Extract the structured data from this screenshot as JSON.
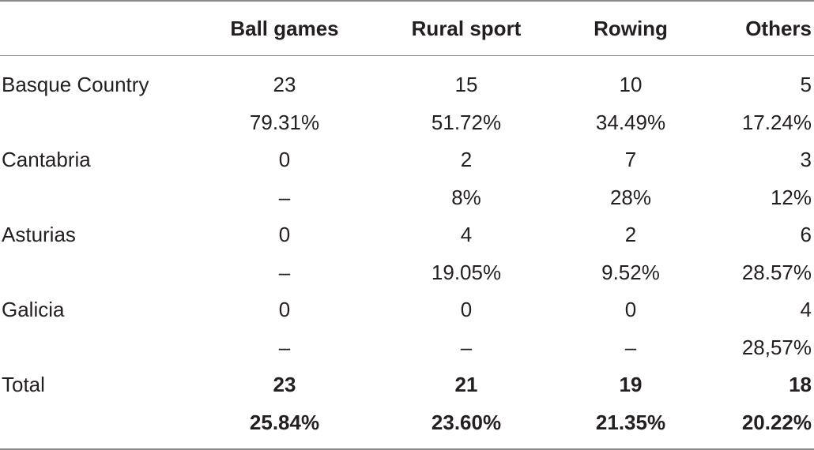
{
  "columns": [
    "Ball games",
    "Rural sport",
    "Rowing",
    "Others"
  ],
  "rows": [
    {
      "label": "Basque Country",
      "counts": [
        "23",
        "15",
        "10",
        "5"
      ],
      "percents": [
        "79.31%",
        "51.72%",
        "34.49%",
        "17.24%"
      ]
    },
    {
      "label": "Cantabria",
      "counts": [
        "0",
        "2",
        "7",
        "3"
      ],
      "percents": [
        "–",
        "8%",
        "28%",
        "12%"
      ]
    },
    {
      "label": "Asturias",
      "counts": [
        "0",
        "4",
        "2",
        "6"
      ],
      "percents": [
        "–",
        "19.05%",
        "9.52%",
        "28.57%"
      ]
    },
    {
      "label": "Galicia",
      "counts": [
        "0",
        "0",
        "0",
        "4"
      ],
      "percents": [
        "–",
        "–",
        "–",
        "28,57%"
      ]
    }
  ],
  "total": {
    "label": "Total",
    "counts": [
      "23",
      "21",
      "19",
      "18"
    ],
    "percents": [
      "25.84%",
      "23.60%",
      "21.35%",
      "20.22%"
    ]
  }
}
